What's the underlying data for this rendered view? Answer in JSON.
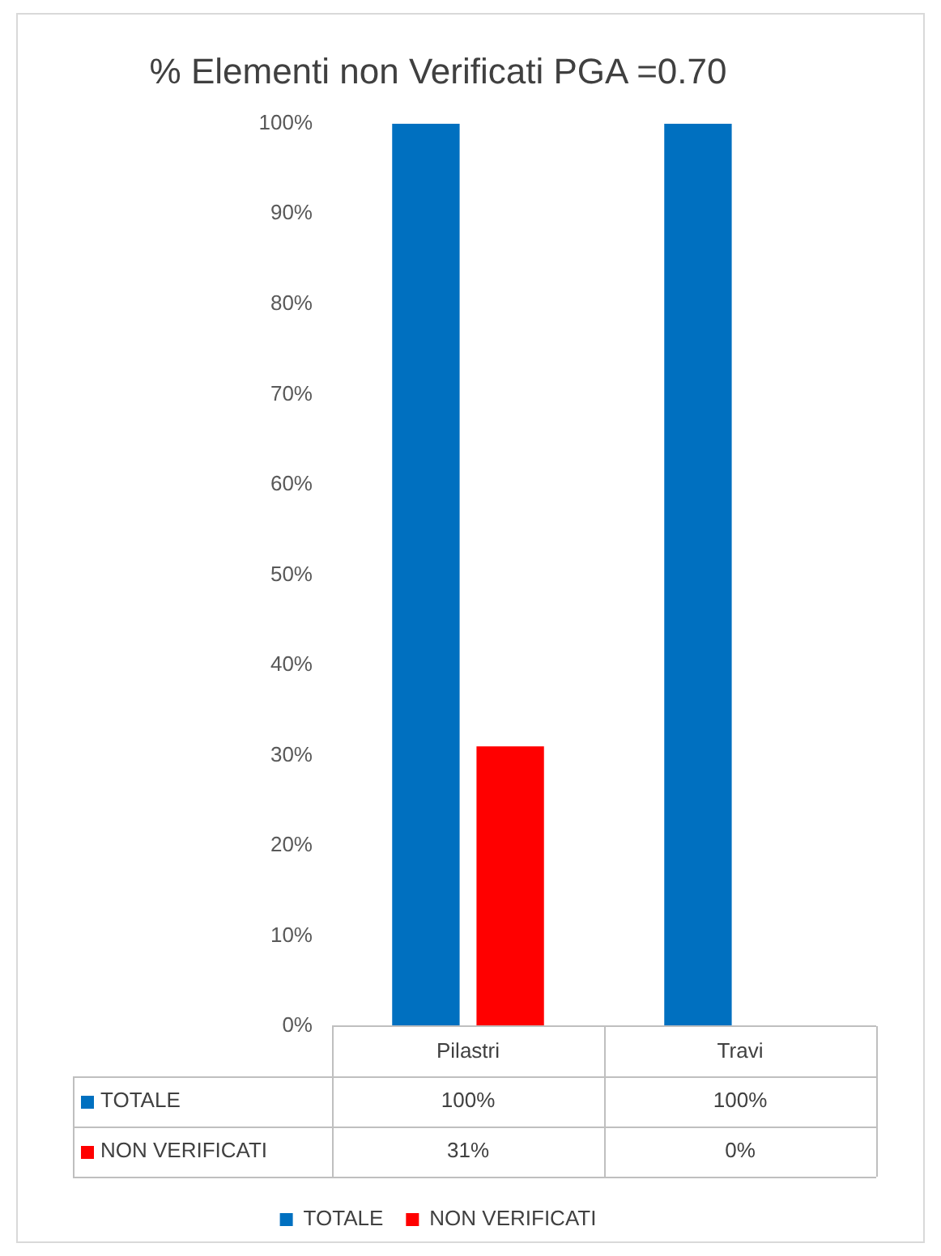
{
  "chart_data": {
    "type": "bar",
    "title": "% Elementi non Verificati PGA =0.70",
    "categories": [
      "Pilastri",
      "Travi"
    ],
    "series": [
      {
        "name": "TOTALE",
        "color": "#0070c0",
        "values": [
          100,
          100
        ],
        "value_labels": [
          "100%",
          "100%"
        ]
      },
      {
        "name": "NON VERIFICATI",
        "color": "#ff0000",
        "values": [
          31,
          0
        ],
        "value_labels": [
          "31%",
          "0%"
        ]
      }
    ],
    "ylim": [
      0,
      100
    ],
    "yticks": [
      {
        "value": 0,
        "label": "0%"
      },
      {
        "value": 10,
        "label": "10%"
      },
      {
        "value": 20,
        "label": "20%"
      },
      {
        "value": 30,
        "label": "30%"
      },
      {
        "value": 40,
        "label": "40%"
      },
      {
        "value": 50,
        "label": "50%"
      },
      {
        "value": 60,
        "label": "60%"
      },
      {
        "value": 70,
        "label": "70%"
      },
      {
        "value": 80,
        "label": "80%"
      },
      {
        "value": 90,
        "label": "90%"
      },
      {
        "value": 100,
        "label": "100%"
      }
    ],
    "grid": false,
    "legend": "bottom"
  }
}
